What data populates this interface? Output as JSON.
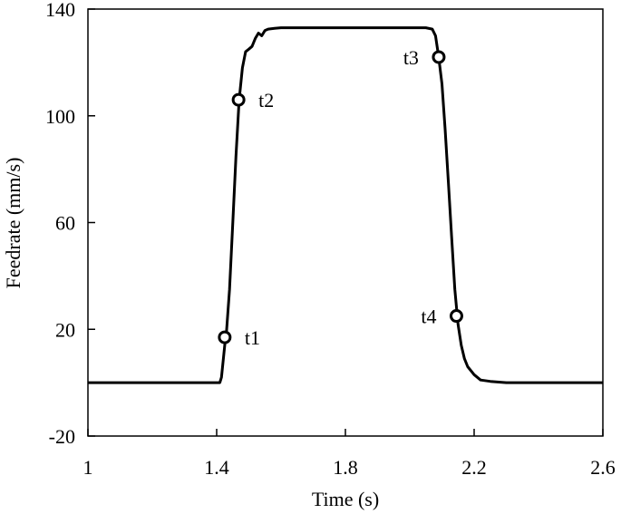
{
  "chart_data": {
    "type": "line",
    "title": "",
    "xlabel": "Time (s)",
    "ylabel": "Feedrate (mm/s)",
    "xlim": [
      1,
      2.6
    ],
    "ylim": [
      -20,
      140
    ],
    "x_ticks": [
      1,
      1.4,
      1.8,
      2.2,
      2.6
    ],
    "x_tick_labels": [
      "1",
      "1.4",
      "1.8",
      "2.2",
      "2.6"
    ],
    "y_ticks": [
      -20,
      20,
      60,
      100,
      140
    ],
    "y_tick_labels": [
      "-20",
      "20",
      "60",
      "100",
      "140"
    ],
    "grid": false,
    "legend": "none",
    "line_color": "#000000",
    "series": [
      {
        "x": [
          1.0,
          1.41,
          1.415,
          1.42,
          1.425,
          1.43,
          1.44,
          1.45,
          1.46,
          1.47,
          1.48,
          1.49,
          1.5,
          1.51,
          1.52,
          1.53,
          1.54,
          1.55,
          1.56,
          1.58,
          1.6,
          1.7,
          1.8,
          1.9,
          2.0,
          2.05,
          2.07,
          2.08,
          2.09,
          2.1,
          2.11,
          2.12,
          2.13,
          2.14,
          2.15,
          2.16,
          2.17,
          2.18,
          2.2,
          2.22,
          2.25,
          2.3,
          2.4,
          2.5,
          2.6
        ],
        "y": [
          0,
          0,
          2,
          8,
          14,
          18,
          35,
          60,
          85,
          106,
          118,
          124,
          125,
          126,
          129,
          131,
          130,
          132,
          132.5,
          132.8,
          133,
          133,
          133,
          133,
          133,
          133,
          132.5,
          130,
          122,
          112,
          95,
          75,
          55,
          35,
          22,
          14,
          9,
          6,
          3,
          1,
          0.5,
          0,
          0,
          0,
          0
        ]
      }
    ],
    "annotations": [
      {
        "label": "t1",
        "x": 1.425,
        "y": 17
      },
      {
        "label": "t2",
        "x": 1.468,
        "y": 106
      },
      {
        "label": "t3",
        "x": 2.09,
        "y": 122
      },
      {
        "label": "t4",
        "x": 2.145,
        "y": 25
      }
    ]
  }
}
